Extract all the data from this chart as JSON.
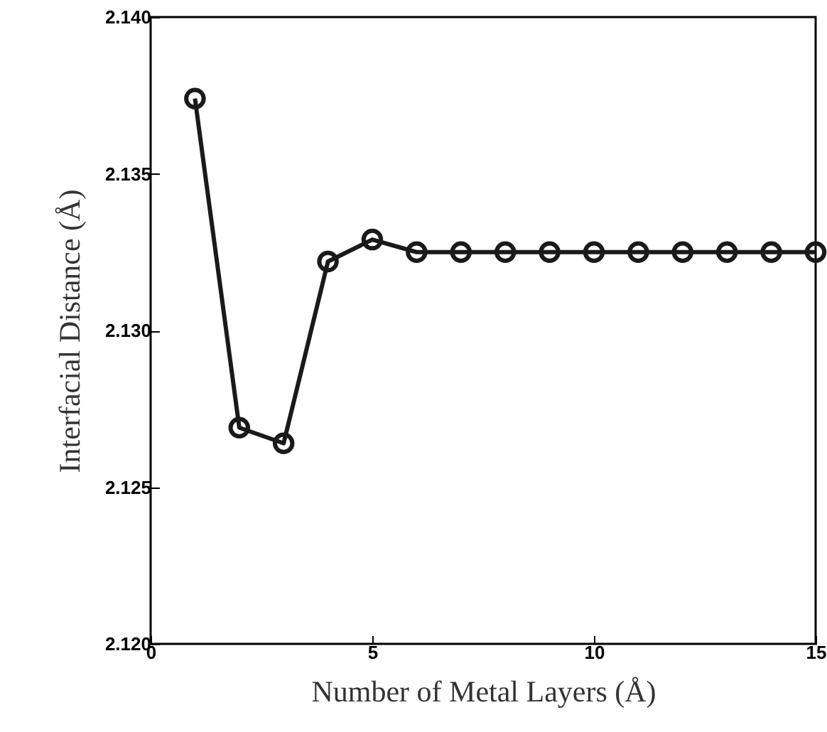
{
  "chart_data": {
    "type": "line",
    "xlabel": "Number of Metal Layers (Å)",
    "ylabel": "Interfacial Distance (Å)",
    "x": [
      1,
      2,
      3,
      4,
      5,
      6,
      7,
      8,
      9,
      10,
      11,
      12,
      13,
      14,
      15
    ],
    "series": [
      {
        "color": "#1a1a1a",
        "values": [
          2.1374,
          2.1269,
          2.1264,
          2.1322,
          2.1329,
          2.1325,
          2.1325,
          2.1325,
          2.1325,
          2.1325,
          2.1325,
          2.1325,
          2.1325,
          2.1325,
          2.1325
        ]
      }
    ],
    "xlim": [
      0,
      15
    ],
    "xticks": [
      0,
      5,
      10,
      15
    ],
    "ylim": [
      2.12,
      2.14
    ],
    "yticks": [
      {
        "value": 2.12,
        "label": "2.120"
      },
      {
        "value": 2.125,
        "label": "2.125"
      },
      {
        "value": 2.13,
        "label": "2.130"
      },
      {
        "value": 2.135,
        "label": "2.135"
      },
      {
        "value": 2.14,
        "label": "2.140"
      }
    ],
    "marker": "circle",
    "line_style": "solid"
  }
}
